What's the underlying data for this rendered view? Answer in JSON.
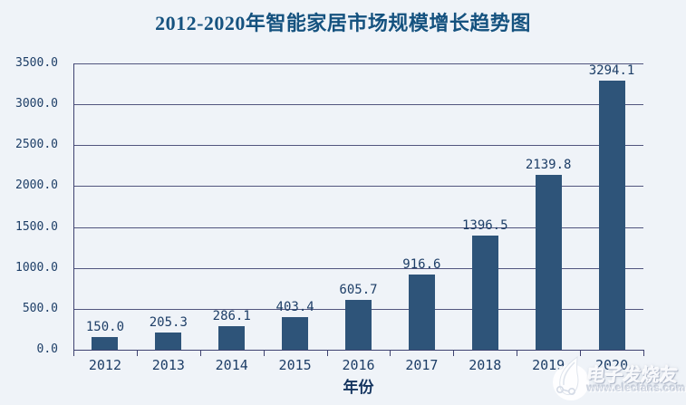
{
  "chart_data": {
    "type": "bar",
    "title": "2012-2020年智能家居市场规模增长趋势图",
    "categories": [
      "2012",
      "2013",
      "2014",
      "2015",
      "2016",
      "2017",
      "2018",
      "2019",
      "2020"
    ],
    "values": [
      150.0,
      205.3,
      286.1,
      403.4,
      605.7,
      916.6,
      1396.5,
      2139.8,
      3294.1
    ],
    "value_labels": [
      "150.0",
      "205.3",
      "286.1",
      "403.4",
      "605.7",
      "916.6",
      "1396.5",
      "2139.8",
      "3294.1"
    ],
    "xlabel": "年份",
    "ylabel": "",
    "ylim": [
      0,
      3500
    ],
    "ytick_step": 500,
    "ytick_labels": [
      "0.0",
      "500.0",
      "1000.0",
      "1500.0",
      "2000.0",
      "2500.0",
      "3000.0",
      "3500.0"
    ],
    "grid": true,
    "legend": "none",
    "bar_color": "#2e5479",
    "grid_color": "#51557e",
    "axis_color": "#3e4270",
    "label_color": "#1d3e67",
    "title_color": "#15527f",
    "background_color": "#eff3f8"
  },
  "watermark": {
    "logo": "elecfans-sprout-logo",
    "text": "电子发烧友",
    "url_text": "www.elecfans.com"
  }
}
